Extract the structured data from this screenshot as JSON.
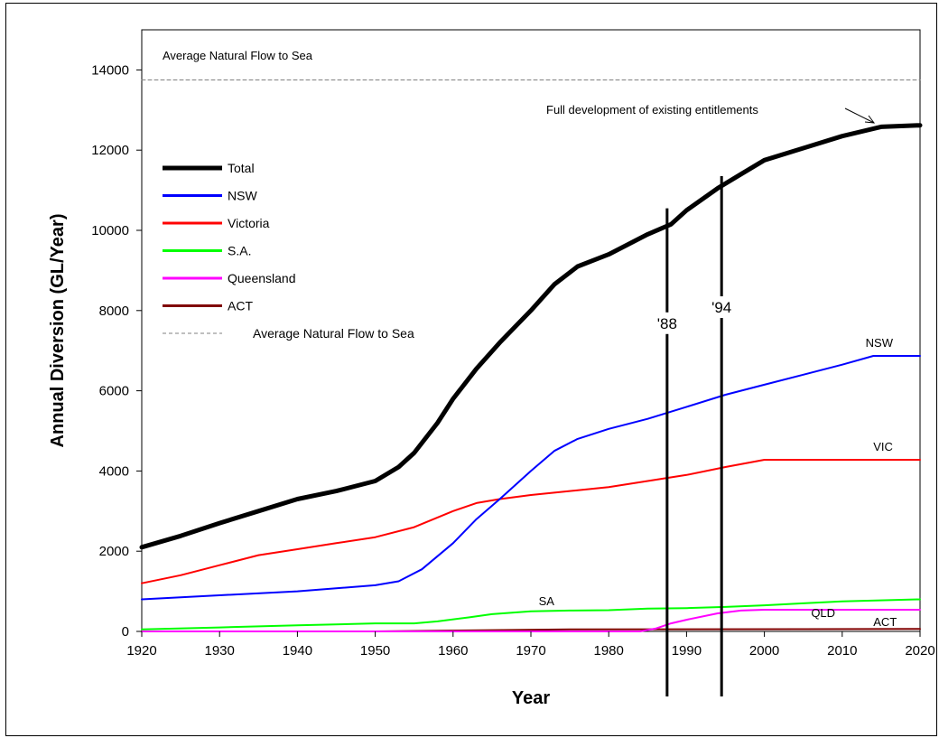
{
  "chart_data": {
    "type": "line",
    "xlabel": "Year",
    "ylabel": "Annual Diversion (GL/Year)",
    "xlim": [
      1920,
      2020
    ],
    "ylim": [
      0,
      15000
    ],
    "x_ticks": [
      "1920",
      "1930",
      "1940",
      "1950",
      "1960",
      "1970",
      "1980",
      "1990",
      "2000",
      "2010",
      "2020"
    ],
    "y_ticks": [
      "0",
      "2000",
      "4000",
      "6000",
      "8000",
      "10000",
      "12000",
      "14000"
    ],
    "grid": false,
    "legend_position": "left",
    "series": [
      {
        "name": "Total",
        "color": "#000000",
        "width": 5,
        "x": [
          1920,
          1925,
          1930,
          1935,
          1940,
          1945,
          1950,
          1953,
          1955,
          1958,
          1960,
          1963,
          1966,
          1970,
          1973,
          1976,
          1980,
          1985,
          1988,
          1990,
          1994,
          1997,
          2000,
          2005,
          2010,
          2015,
          2020
        ],
        "y": [
          2100,
          2380,
          2700,
          3000,
          3300,
          3500,
          3750,
          4100,
          4450,
          5200,
          5800,
          6550,
          7200,
          8000,
          8650,
          9100,
          9400,
          9900,
          10150,
          10500,
          11050,
          11400,
          11750,
          12050,
          12350,
          12580,
          12620
        ]
      },
      {
        "name": "NSW",
        "color": "#0000ff",
        "width": 2,
        "x": [
          1920,
          1930,
          1940,
          1950,
          1953,
          1956,
          1960,
          1963,
          1966,
          1970,
          1973,
          1976,
          1980,
          1985,
          1990,
          1995,
          2000,
          2005,
          2010,
          2014,
          2020
        ],
        "y": [
          800,
          900,
          1000,
          1150,
          1250,
          1550,
          2200,
          2800,
          3300,
          4000,
          4500,
          4800,
          5050,
          5300,
          5600,
          5900,
          6150,
          6400,
          6650,
          6870,
          6870
        ]
      },
      {
        "name": "Victoria",
        "color": "#ff0000",
        "width": 2,
        "x": [
          1920,
          1925,
          1930,
          1935,
          1940,
          1945,
          1950,
          1955,
          1960,
          1963,
          1966,
          1970,
          1975,
          1980,
          1985,
          1990,
          1995,
          2000,
          2010,
          2020
        ],
        "y": [
          1200,
          1400,
          1650,
          1900,
          2050,
          2200,
          2350,
          2600,
          3000,
          3200,
          3300,
          3400,
          3500,
          3600,
          3750,
          3900,
          4100,
          4280,
          4280,
          4280
        ]
      },
      {
        "name": "S.A.",
        "color": "#00ff00",
        "width": 2,
        "x": [
          1920,
          1930,
          1940,
          1950,
          1955,
          1958,
          1962,
          1965,
          1970,
          1975,
          1980,
          1985,
          1990,
          1995,
          2000,
          2005,
          2010,
          2020
        ],
        "y": [
          50,
          100,
          150,
          200,
          200,
          250,
          350,
          430,
          500,
          520,
          530,
          570,
          580,
          610,
          650,
          700,
          750,
          800
        ]
      },
      {
        "name": "Queensland",
        "color": "#ff00ff",
        "width": 2,
        "x": [
          1920,
          1984,
          1986,
          1988,
          1990,
          1994,
          1997,
          2000,
          2020
        ],
        "y": [
          0,
          0,
          70,
          200,
          290,
          450,
          520,
          540,
          540
        ]
      },
      {
        "name": "ACT",
        "color": "#800000",
        "width": 2,
        "x": [
          1920,
          1950,
          1975,
          2020
        ],
        "y": [
          0,
          0,
          50,
          60
        ]
      },
      {
        "name": "Average Natural Flow to Sea",
        "color": "#808080",
        "width": 1,
        "dashed": true,
        "x": [
          1920,
          2020
        ],
        "y": [
          13750,
          13750
        ]
      }
    ],
    "vertical_markers": [
      {
        "label": "'88",
        "x": 1987.5
      },
      {
        "label": "'94",
        "x": 1994.5
      }
    ],
    "annotations": {
      "flow_label": "Average Natural Flow to Sea",
      "full_dev": "Full development of existing entitlements",
      "series_tags": [
        {
          "text": "NSW",
          "x": 2013,
          "y": 7100
        },
        {
          "text": "VIC",
          "x": 2014,
          "y": 4500
        },
        {
          "text": "SA",
          "x": 1971,
          "y": 650
        },
        {
          "text": "QLD",
          "x": 2006,
          "y": 360
        },
        {
          "text": "ACT",
          "x": 2014,
          "y": 130
        }
      ]
    }
  }
}
